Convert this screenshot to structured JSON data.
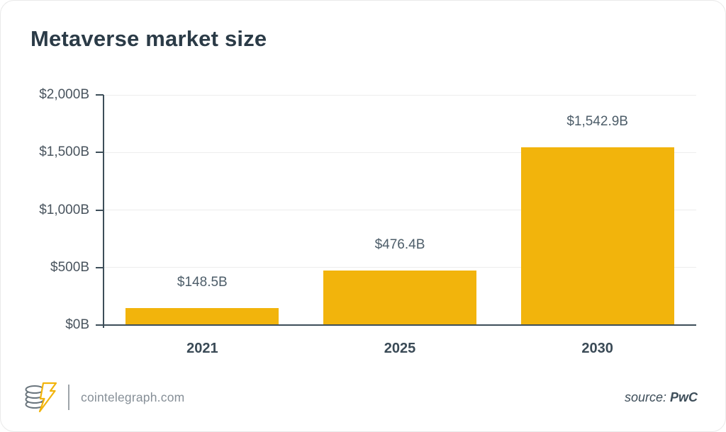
{
  "page": {
    "title": "Metaverse market size"
  },
  "chart_data": {
    "type": "bar",
    "title": "Metaverse market size",
    "categories": [
      "2021",
      "2025",
      "2030"
    ],
    "values": [
      148.5,
      476.4,
      1542.9
    ],
    "value_labels": [
      "$148.5B",
      "$476.4B",
      "$1,542.9B"
    ],
    "xlabel": "",
    "ylabel": "",
    "ylim": [
      0,
      2000
    ],
    "yticks": [
      0,
      500,
      1000,
      1500,
      2000
    ],
    "ytick_labels": [
      "$0B",
      "$500B",
      "$1,000B",
      "$1,500B",
      "$2,000B"
    ],
    "grid": true,
    "legend": false,
    "bar_color": "#F2B40C"
  },
  "footer": {
    "brand": "cointelegraph.com",
    "source_label": "source:",
    "source_value": "PwC"
  },
  "colors": {
    "bar": "#F2B40C",
    "axis": "#3D4E59",
    "title": "#2B3B47",
    "value_label": "#4D5D69",
    "grid": "#EDEDED",
    "footer_text": "#868F97"
  }
}
